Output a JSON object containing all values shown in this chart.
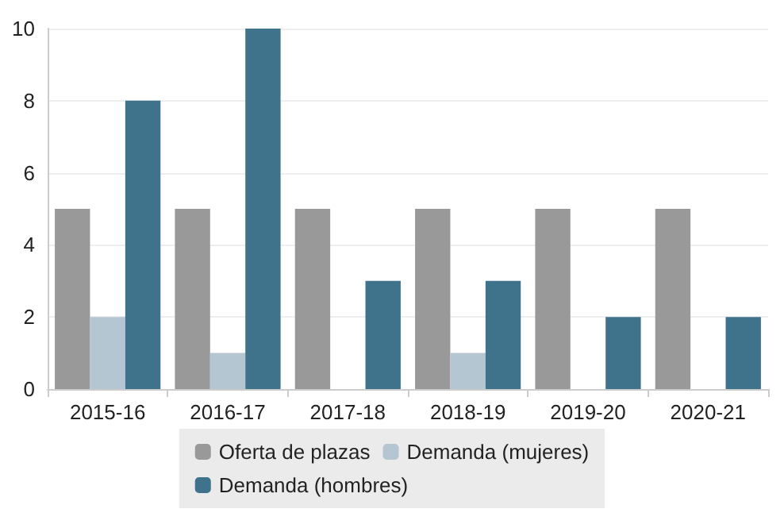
{
  "chart_data": {
    "type": "bar",
    "categories": [
      "2015-16",
      "2016-17",
      "2017-18",
      "2018-19",
      "2019-20",
      "2020-21"
    ],
    "series": [
      {
        "name": "Oferta de plazas",
        "color": "#999999",
        "values": [
          5,
          5,
          5,
          5,
          5,
          5
        ]
      },
      {
        "name": "Demanda (mujeres)",
        "color": "#b3c6d2",
        "values": [
          2,
          1,
          0,
          1,
          0,
          0
        ]
      },
      {
        "name": "Demanda (hombres)",
        "color": "#3f728b",
        "values": [
          8,
          10,
          3,
          3,
          2,
          2
        ]
      }
    ],
    "ylim": [
      0,
      10
    ],
    "yticks": [
      0,
      2,
      4,
      6,
      8,
      10
    ],
    "grid": "y",
    "legend": "bottom"
  }
}
